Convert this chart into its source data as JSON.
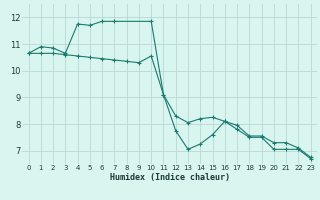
{
  "xlabel": "Humidex (Indice chaleur)",
  "bg_color": "#d8f5f0",
  "grid_color": "#b8d8d4",
  "line_color": "#1a7a6e",
  "xlim": [
    -0.5,
    23.5
  ],
  "ylim": [
    6.5,
    12.5
  ],
  "xticks": [
    0,
    1,
    2,
    3,
    4,
    5,
    6,
    7,
    8,
    9,
    10,
    11,
    12,
    13,
    14,
    15,
    16,
    17,
    18,
    19,
    20,
    21,
    22,
    23
  ],
  "yticks": [
    7,
    8,
    9,
    10,
    11,
    12
  ],
  "series1_x": [
    0,
    1,
    2,
    3,
    4,
    5,
    6,
    7,
    10,
    11,
    12,
    13,
    14,
    15,
    16,
    17,
    18,
    19,
    20,
    21,
    22,
    23
  ],
  "series1_y": [
    10.65,
    10.9,
    10.85,
    10.65,
    11.75,
    11.7,
    11.85,
    11.85,
    11.85,
    9.1,
    7.75,
    7.05,
    7.25,
    7.6,
    8.1,
    7.8,
    7.5,
    7.5,
    7.05,
    7.05,
    7.05,
    6.7
  ],
  "series2_x": [
    0,
    1,
    2,
    3,
    4,
    5,
    6,
    7,
    8,
    9,
    10,
    11,
    12,
    13,
    14,
    15,
    16,
    17,
    18,
    19,
    20,
    21,
    22,
    23
  ],
  "series2_y": [
    10.65,
    10.65,
    10.65,
    10.6,
    10.55,
    10.5,
    10.45,
    10.4,
    10.35,
    10.3,
    10.55,
    9.1,
    8.3,
    8.05,
    8.2,
    8.25,
    8.1,
    7.95,
    7.55,
    7.55,
    7.3,
    7.3,
    7.1,
    6.75
  ]
}
